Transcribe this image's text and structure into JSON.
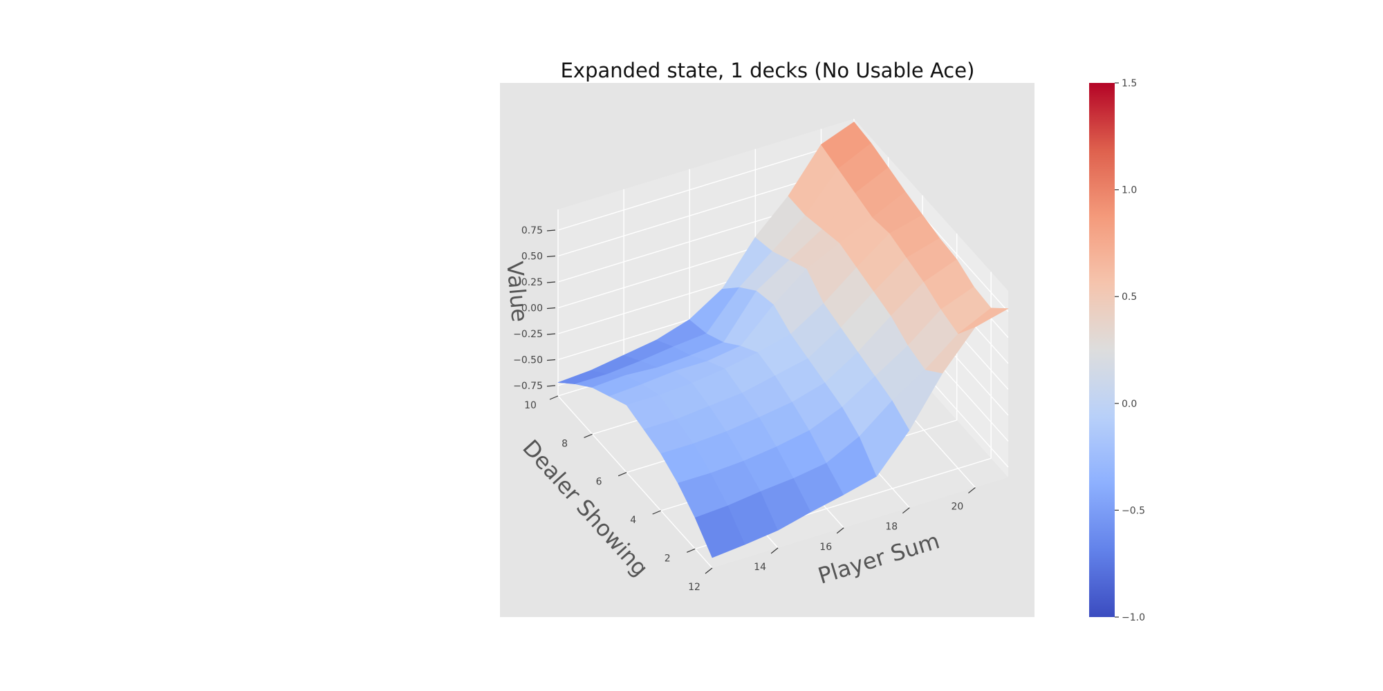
{
  "chart_data": {
    "type": "surface3d",
    "title": "Expanded state, 1 decks (No Usable Ace)",
    "xlabel": "Player Sum",
    "ylabel": "Dealer Showing",
    "zlabel": "Value",
    "x": [
      12,
      13,
      14,
      15,
      16,
      17,
      18,
      19,
      20,
      21
    ],
    "y": [
      1,
      2,
      3,
      4,
      5,
      6,
      7,
      8,
      9,
      10
    ],
    "xticks": [
      12,
      14,
      16,
      18,
      20
    ],
    "yticks": [
      2,
      4,
      6,
      8,
      10
    ],
    "zticks": [
      -0.75,
      -0.5,
      -0.25,
      0.0,
      0.25,
      0.5,
      0.75
    ],
    "ztick_labels": [
      "−0.75",
      "−0.50",
      "−0.25",
      "0.00",
      "0.25",
      "0.50",
      "0.75"
    ],
    "zlim": [
      -0.85,
      0.95
    ],
    "colorbar": {
      "colormap": "coolwarm",
      "range": [
        -1.0,
        1.5
      ],
      "ticks": [
        -1.0,
        -0.5,
        0.0,
        0.5,
        1.0,
        1.5
      ],
      "tick_labels": [
        "−1.0",
        "−0.5",
        "0.0",
        "0.5",
        "1.0",
        "1.5"
      ]
    },
    "grid": true,
    "z": [
      [
        -0.75,
        -0.72,
        -0.68,
        -0.6,
        -0.53,
        -0.45,
        -0.1,
        0.35,
        0.7,
        0.78
      ],
      [
        -0.55,
        -0.53,
        -0.49,
        -0.46,
        -0.41,
        -0.25,
        0.0,
        0.2,
        0.45,
        0.6
      ],
      [
        -0.4,
        -0.4,
        -0.38,
        -0.34,
        -0.28,
        -0.15,
        0.05,
        0.25,
        0.5,
        0.62
      ],
      [
        -0.3,
        -0.3,
        -0.28,
        -0.24,
        -0.19,
        -0.1,
        0.1,
        0.35,
        0.58,
        0.7
      ],
      [
        -0.25,
        -0.25,
        -0.22,
        -0.19,
        -0.12,
        -0.05,
        0.15,
        0.4,
        0.63,
        0.72
      ],
      [
        -0.2,
        -0.2,
        -0.18,
        -0.14,
        -0.08,
        0.0,
        0.2,
        0.45,
        0.68,
        0.76
      ],
      [
        -0.3,
        -0.28,
        -0.25,
        -0.25,
        -0.2,
        0.1,
        0.35,
        0.5,
        0.65,
        0.8
      ],
      [
        -0.4,
        -0.38,
        -0.4,
        -0.38,
        -0.35,
        0.05,
        0.25,
        0.45,
        0.7,
        0.85
      ],
      [
        -0.55,
        -0.55,
        -0.52,
        -0.48,
        -0.45,
        -0.1,
        0.15,
        0.4,
        0.75,
        0.9
      ],
      [
        -0.72,
        -0.7,
        -0.65,
        -0.6,
        -0.5,
        -0.3,
        0.1,
        0.4,
        0.8,
        0.92
      ]
    ]
  }
}
